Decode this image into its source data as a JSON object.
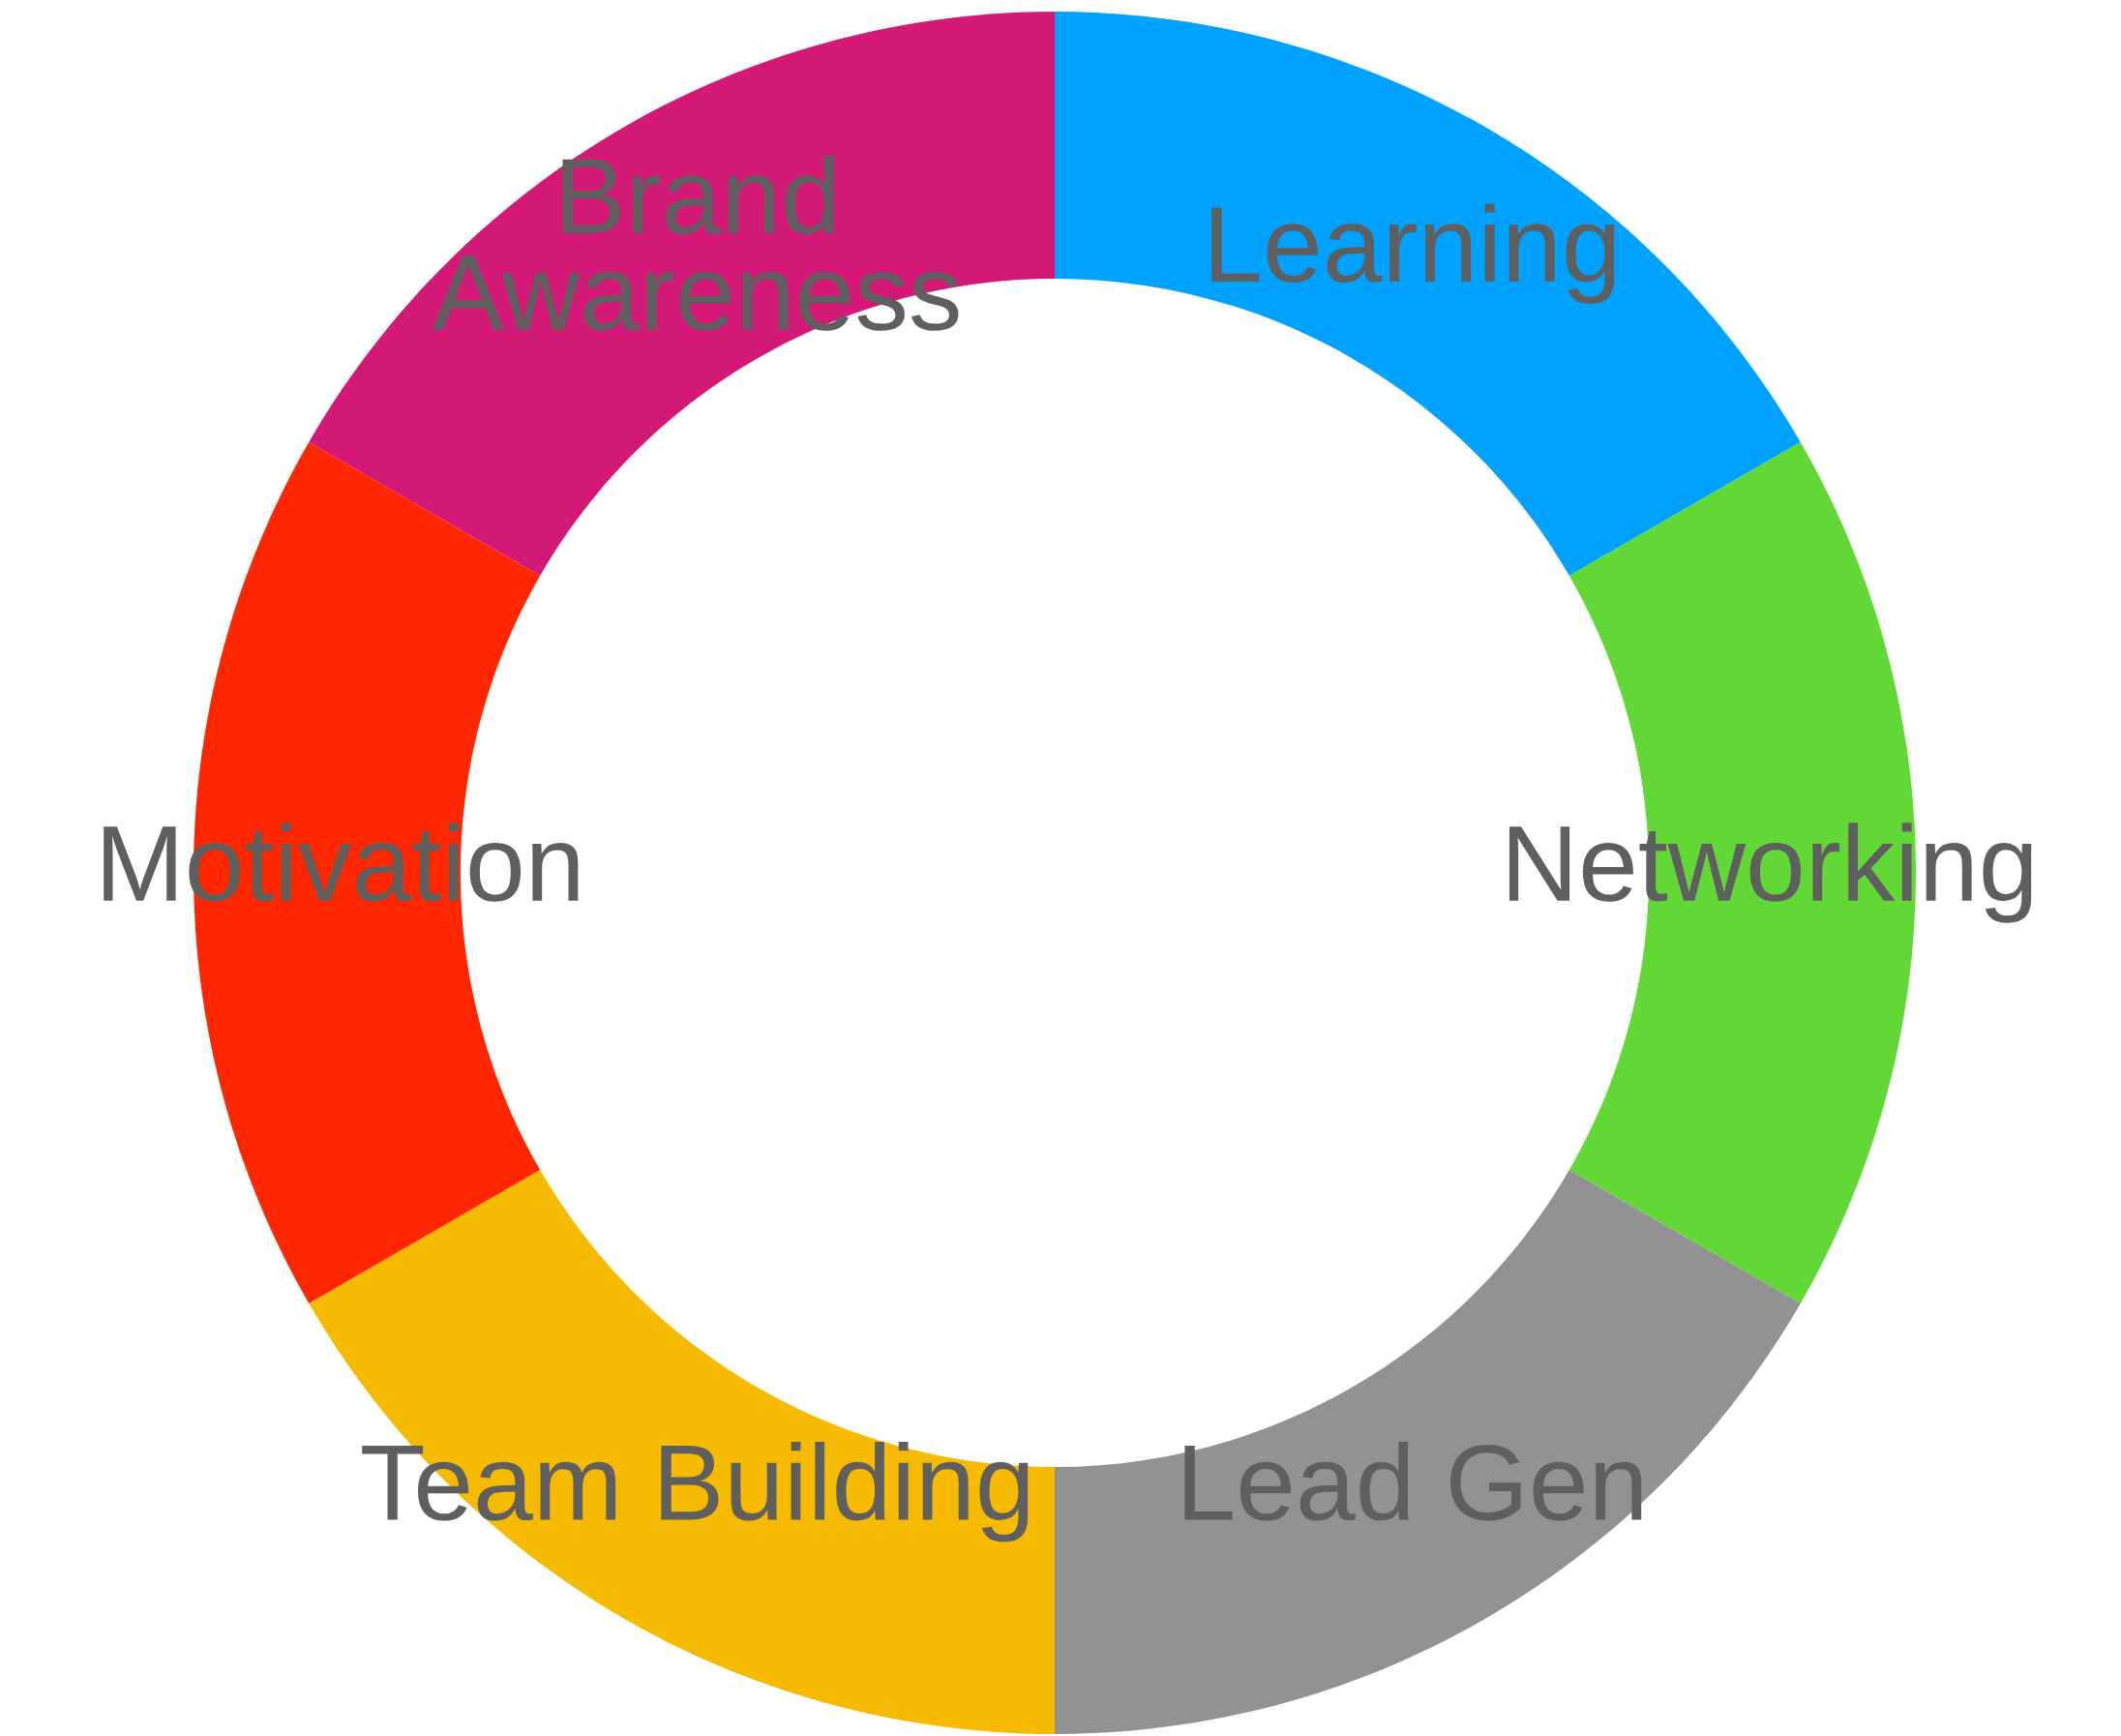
{
  "chart_data": {
    "type": "donut",
    "categories": [
      "Learning",
      "Networking",
      "Lead Gen",
      "Team Building",
      "Motivation",
      "Brand\nAwareness"
    ],
    "values": [
      16.67,
      16.67,
      16.67,
      16.67,
      16.67,
      16.67
    ],
    "colors": [
      "#00a2ff",
      "#61d836",
      "#929292",
      "#f6ba00",
      "#ff2600",
      "#d31876"
    ],
    "legend": false
  }
}
